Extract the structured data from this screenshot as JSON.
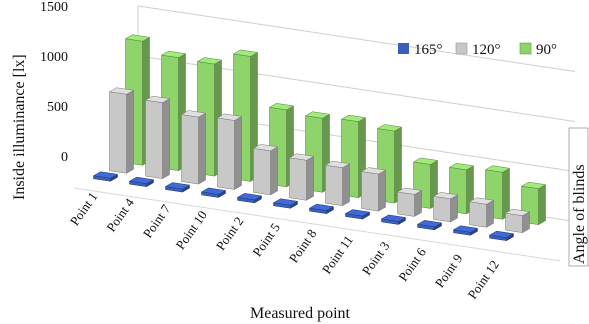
{
  "chart_data": {
    "type": "bar",
    "title": "",
    "xlabel": "Measured point",
    "ylabel": "Inside illuminance [lx]",
    "zlabel": "Angle of blinds",
    "ylim": [
      0,
      1500
    ],
    "yticks": [
      0,
      500,
      1000,
      1500
    ],
    "grid": true,
    "legend_position": "top-right",
    "categories": [
      "Point 1",
      "Point 4",
      "Point 7",
      "Point 10",
      "Point 2",
      "Point 5",
      "Point 8",
      "Point 11",
      "Point 3",
      "Point 6",
      "Point 9",
      "Point 12"
    ],
    "series": [
      {
        "name": "165°",
        "color": "#3a5fbf",
        "values": [
          10,
          10,
          10,
          10,
          10,
          10,
          10,
          10,
          10,
          10,
          10,
          10
        ]
      },
      {
        "name": "120°",
        "color": "#c8c8c8",
        "values": [
          790,
          760,
          670,
          690,
          440,
          400,
          380,
          370,
          220,
          230,
          230,
          170
        ]
      },
      {
        "name": "90°",
        "color": "#8fd36b",
        "values": [
          1240,
          1130,
          1120,
          1250,
          770,
          740,
          760,
          720,
          440,
          440,
          470,
          360
        ]
      }
    ]
  }
}
